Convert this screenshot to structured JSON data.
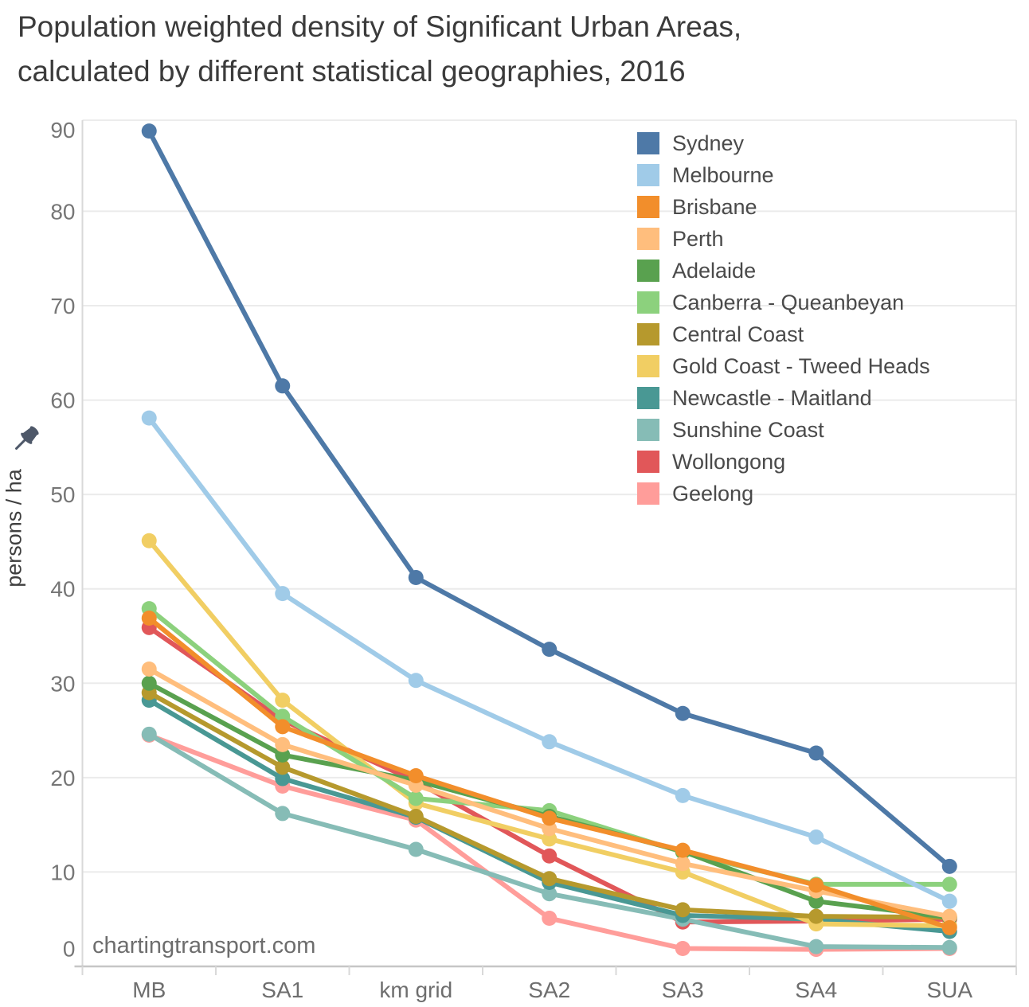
{
  "title": {
    "line1": "Population weighted density of Significant Urban Areas,",
    "line2": "calculated by different statistical geographies, 2016"
  },
  "watermark": "chartingtransport.com",
  "y_axis": {
    "label": "persons / ha",
    "ticks": [
      0,
      10,
      20,
      30,
      40,
      50,
      60,
      70,
      80,
      90
    ]
  },
  "x_axis": {
    "categories": [
      "MB",
      "SA1",
      "km grid",
      "SA2",
      "SA3",
      "SA4",
      "SUA"
    ]
  },
  "icons": {
    "pin": "pin-icon"
  },
  "colors": {
    "axis_text": "#767676",
    "grid": "#ebebeb",
    "axis_line": "#d9d9d9",
    "axis_bottom": "#c6c6c6"
  },
  "chart_data": {
    "type": "line",
    "title": "Population weighted density of Significant Urban Areas, calculated by different statistical geographies, 2016",
    "categories": [
      "MB",
      "SA1",
      "km grid",
      "SA2",
      "SA3",
      "SA4",
      "SUA"
    ],
    "xlabel": "",
    "ylabel": "persons / ha",
    "ylim": [
      0,
      90
    ],
    "yticks": [
      0,
      10,
      20,
      30,
      40,
      50,
      60,
      70,
      80,
      90
    ],
    "grid": true,
    "legend_position": "top-right",
    "series": [
      {
        "name": "Sydney",
        "color": "#4e79a7",
        "values": [
          88.5,
          61.5,
          41.2,
          33.6,
          26.8,
          22.6,
          10.6
        ]
      },
      {
        "name": "Melbourne",
        "color": "#a0cbe8",
        "values": [
          58.1,
          39.5,
          30.3,
          23.8,
          18.1,
          13.7,
          6.9
        ]
      },
      {
        "name": "Brisbane",
        "color": "#f28e2b",
        "values": [
          36.9,
          25.4,
          20.2,
          15.7,
          12.3,
          8.6,
          4.1
        ]
      },
      {
        "name": "Perth",
        "color": "#ffbe7d",
        "values": [
          31.5,
          23.5,
          19.2,
          14.6,
          10.9,
          8.0,
          5.3
        ]
      },
      {
        "name": "Adelaide",
        "color": "#59a14f",
        "values": [
          30.0,
          22.4,
          19.7,
          15.9,
          12.2,
          6.9,
          5.2
        ]
      },
      {
        "name": "Canberra - Queanbeyan",
        "color": "#8cd17d",
        "values": [
          37.9,
          26.5,
          17.8,
          16.5,
          12.1,
          8.7,
          8.7
        ]
      },
      {
        "name": "Central Coast",
        "color": "#b6992d",
        "values": [
          29.0,
          21.1,
          15.9,
          9.3,
          6.0,
          5.3,
          5.2
        ]
      },
      {
        "name": "Gold Coast - Tweed Heads",
        "color": "#f1ce63",
        "values": [
          45.1,
          28.2,
          17.3,
          13.5,
          10.0,
          4.5,
          4.3
        ]
      },
      {
        "name": "Newcastle - Maitland",
        "color": "#499894",
        "values": [
          28.2,
          19.9,
          15.8,
          8.9,
          5.4,
          5.0,
          3.7
        ]
      },
      {
        "name": "Sunshine Coast",
        "color": "#86bcb6",
        "values": [
          24.6,
          16.2,
          12.4,
          7.7,
          5.0,
          2.1,
          2.0
        ]
      },
      {
        "name": "Wollongong",
        "color": "#e15759",
        "values": [
          35.9,
          26.1,
          19.6,
          11.7,
          4.7,
          4.8,
          5.0
        ]
      },
      {
        "name": "Geelong",
        "color": "#ff9d9a",
        "values": [
          24.5,
          19.1,
          15.5,
          5.1,
          1.9,
          1.8,
          1.9
        ]
      }
    ]
  }
}
